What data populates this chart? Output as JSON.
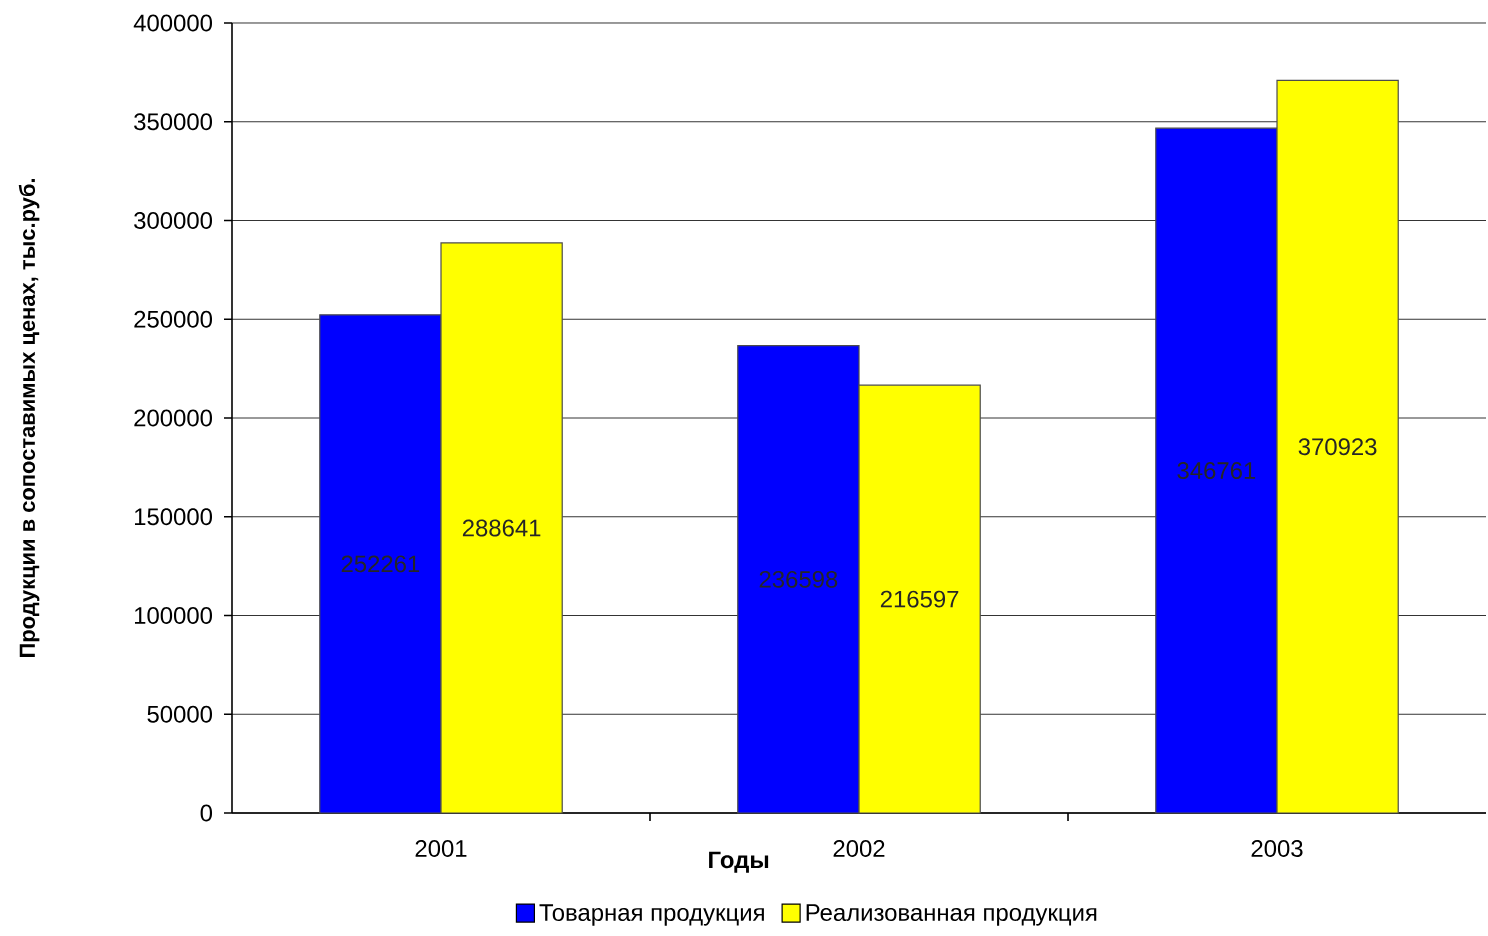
{
  "chart_data": {
    "type": "bar",
    "categories": [
      "2001",
      "2002",
      "2003"
    ],
    "series": [
      {
        "name": "Товарная продукция",
        "color": "#0000ff",
        "values": [
          252261,
          236598,
          346761
        ]
      },
      {
        "name": "Реализованная продукция",
        "color": "#ffff00",
        "values": [
          288641,
          216597,
          370923
        ]
      }
    ],
    "xlabel": "Годы",
    "ylabel": "Продукции в сопоставимых ценах, тыс.руб.",
    "ylim": [
      0,
      400000
    ],
    "yticks": [
      0,
      50000,
      100000,
      150000,
      200000,
      250000,
      300000,
      350000,
      400000
    ],
    "grid": "y",
    "legend": "bottom",
    "data_labels": true
  }
}
